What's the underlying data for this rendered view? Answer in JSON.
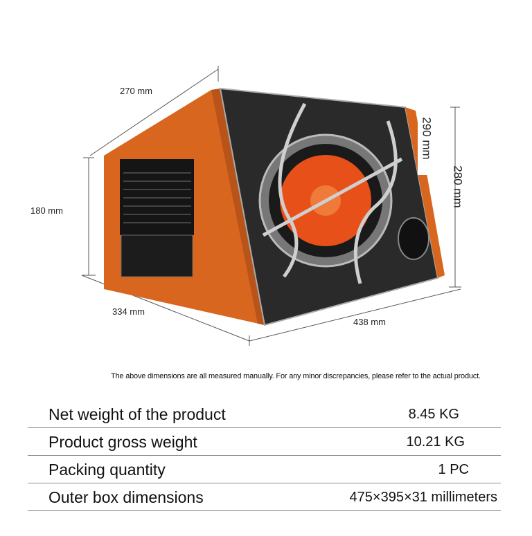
{
  "dimensions": {
    "depth_top": "270 mm",
    "height_left": "180 mm",
    "width_bottom_left": "334 mm",
    "length_bottom_right": "438 mm",
    "height_front": "290 mm",
    "height_right": "280 mm"
  },
  "note": "The above dimensions are all measured manually. For any minor discrepancies, please refer to the actual product.",
  "specs": [
    {
      "label": "Net weight of the product",
      "value": "8.45 KG"
    },
    {
      "label": "Product gross weight",
      "value": "10.21 KG"
    },
    {
      "label": "Packing quantity",
      "value": "1 PC"
    },
    {
      "label": "Outer box dimensions",
      "value": "475×395×31 millimeters"
    }
  ],
  "colors": {
    "orange": "#d9661e",
    "grille": "#2a2a2a",
    "cone": "#e8501a"
  }
}
